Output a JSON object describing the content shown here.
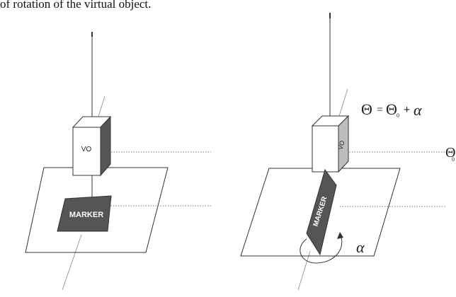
{
  "caption": "of rotation of the virtual object.",
  "left_figure": {
    "cube_label": "VO",
    "marker_label": "MARKER"
  },
  "right_figure": {
    "cube_label": "VO",
    "marker_label": "MARKER",
    "equation": {
      "lhs": "Θ",
      "equals": "=",
      "theta0": "Θ",
      "theta0_sub": "0",
      "plus": "+",
      "alpha": "α"
    },
    "theta0_marker": "Θ",
    "theta0_marker_sub": "0",
    "rotation_symbol": "α"
  },
  "colors": {
    "line": "#333333",
    "dotted": "#777777",
    "cube_dark": "#555555",
    "cube_light": "#bdbdbd",
    "marker_fill": "#555555",
    "marker_text": "#ffffff"
  }
}
